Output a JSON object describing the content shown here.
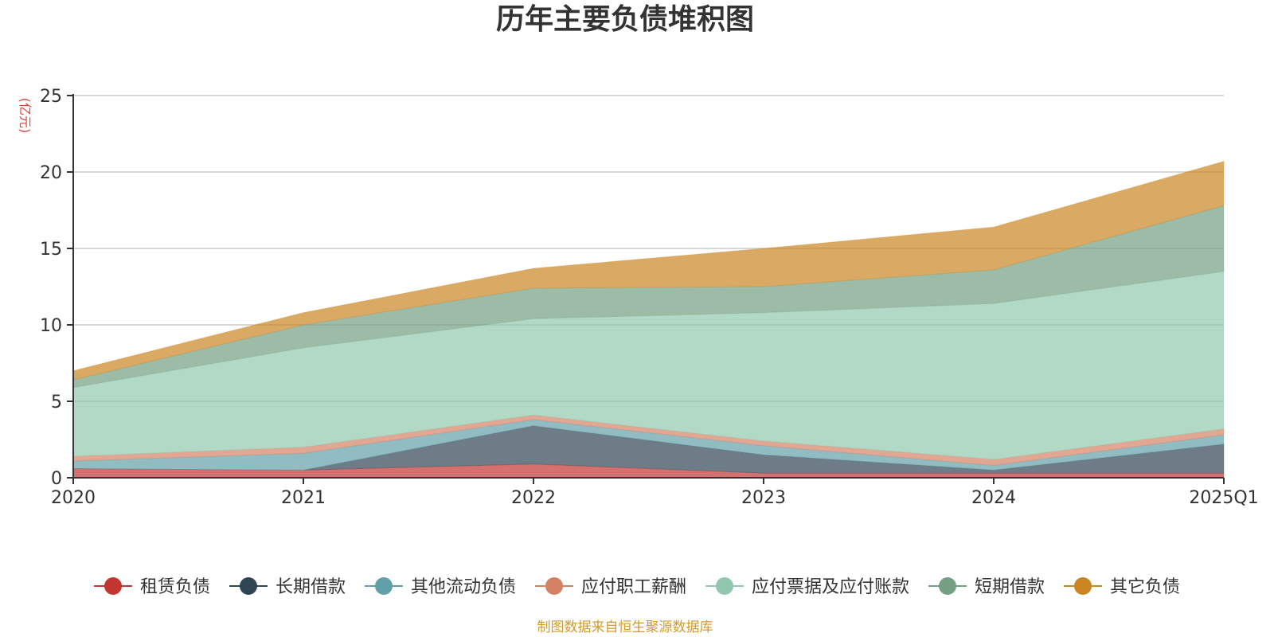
{
  "chart_data": {
    "type": "area",
    "stacked": true,
    "title": "历年主要负债堆积图",
    "ylabel": "(亿元)",
    "xlabel": "",
    "ylim": [
      0,
      25
    ],
    "yticks": [
      0,
      5,
      10,
      15,
      20,
      25
    ],
    "grid": true,
    "legend_position": "bottom",
    "categories": [
      "2020",
      "2021",
      "2022",
      "2023",
      "2024",
      "2025Q1"
    ],
    "series": [
      {
        "name": "租赁负债",
        "color": "#c23531",
        "values": [
          0.6,
          0.5,
          0.9,
          0.3,
          0.3,
          0.3
        ]
      },
      {
        "name": "长期借款",
        "color": "#2f4554",
        "values": [
          0.0,
          0.0,
          2.5,
          1.2,
          0.2,
          1.9
        ]
      },
      {
        "name": "其他流动负债",
        "color": "#61a0a8",
        "values": [
          0.5,
          1.1,
          0.4,
          0.6,
          0.3,
          0.6
        ]
      },
      {
        "name": "应付职工薪酬",
        "color": "#d48265",
        "values": [
          0.3,
          0.4,
          0.3,
          0.3,
          0.4,
          0.4
        ]
      },
      {
        "name": "应付票据及应付账款",
        "color": "#91c7ae",
        "values": [
          4.5,
          6.5,
          6.3,
          8.4,
          10.2,
          10.3
        ]
      },
      {
        "name": "短期借款",
        "color": "#749f83",
        "values": [
          0.5,
          1.5,
          2.0,
          1.7,
          2.2,
          4.3
        ]
      },
      {
        "name": "其它负债",
        "color": "#ca8622",
        "values": [
          0.6,
          0.8,
          1.3,
          2.5,
          2.8,
          2.9
        ]
      }
    ]
  },
  "footer": {
    "source": "制图数据来自恒生聚源数据库"
  }
}
